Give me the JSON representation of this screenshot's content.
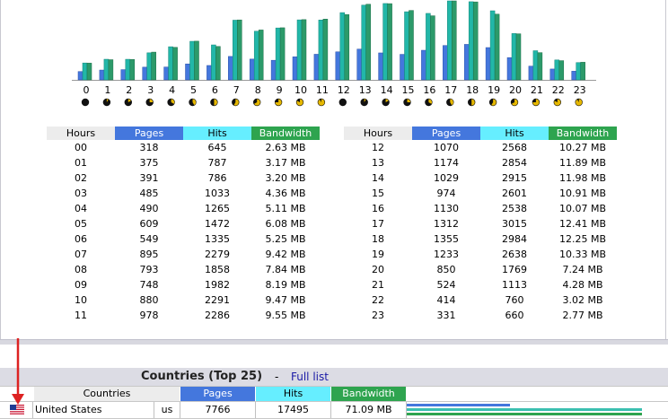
{
  "colors": {
    "pages": "#4477dd",
    "hits": "#66eeff",
    "bandwidth": "#2ea44f",
    "hours_header": "#ececec",
    "arrow": "#dd2222"
  },
  "chart_data": {
    "type": "bar",
    "categories": [
      "0",
      "1",
      "2",
      "3",
      "4",
      "5",
      "6",
      "7",
      "8",
      "9",
      "10",
      "11",
      "12",
      "13",
      "14",
      "15",
      "16",
      "17",
      "18",
      "19",
      "20",
      "21",
      "22",
      "23"
    ],
    "series": [
      {
        "values": [
          318,
          375,
          391,
          485,
          490,
          609,
          549,
          895,
          793,
          748,
          880,
          978,
          1070,
          1174,
          1029,
          974,
          1130,
          1312,
          1355,
          1233,
          850,
          524,
          414,
          331
        ]
      },
      {
        "values": [
          645,
          787,
          786,
          1033,
          1265,
          1472,
          1335,
          2279,
          1858,
          1982,
          2291,
          2286,
          2568,
          2854,
          2915,
          2601,
          2538,
          3015,
          2984,
          2638,
          1769,
          1113,
          760,
          660
        ]
      },
      {
        "values": [
          2.63,
          3.17,
          3.2,
          4.36,
          5.11,
          6.08,
          5.25,
          9.42,
          7.84,
          8.19,
          9.47,
          9.55,
          10.27,
          11.89,
          11.98,
          10.91,
          10.07,
          12.41,
          12.25,
          10.33,
          7.24,
          4.28,
          3.02,
          2.77
        ]
      }
    ]
  },
  "hours_table": {
    "headers": {
      "hours": "Hours",
      "pages": "Pages",
      "hits": "Hits",
      "bandwidth": "Bandwidth"
    },
    "left": [
      [
        "00",
        "318",
        "645",
        "2.63 MB"
      ],
      [
        "01",
        "375",
        "787",
        "3.17 MB"
      ],
      [
        "02",
        "391",
        "786",
        "3.20 MB"
      ],
      [
        "03",
        "485",
        "1033",
        "4.36 MB"
      ],
      [
        "04",
        "490",
        "1265",
        "5.11 MB"
      ],
      [
        "05",
        "609",
        "1472",
        "6.08 MB"
      ],
      [
        "06",
        "549",
        "1335",
        "5.25 MB"
      ],
      [
        "07",
        "895",
        "2279",
        "9.42 MB"
      ],
      [
        "08",
        "793",
        "1858",
        "7.84 MB"
      ],
      [
        "09",
        "748",
        "1982",
        "8.19 MB"
      ],
      [
        "10",
        "880",
        "2291",
        "9.47 MB"
      ],
      [
        "11",
        "978",
        "2286",
        "9.55 MB"
      ]
    ],
    "right": [
      [
        "12",
        "1070",
        "2568",
        "10.27 MB"
      ],
      [
        "13",
        "1174",
        "2854",
        "11.89 MB"
      ],
      [
        "14",
        "1029",
        "2915",
        "11.98 MB"
      ],
      [
        "15",
        "974",
        "2601",
        "10.91 MB"
      ],
      [
        "16",
        "1130",
        "2538",
        "10.07 MB"
      ],
      [
        "17",
        "1312",
        "3015",
        "12.41 MB"
      ],
      [
        "18",
        "1355",
        "2984",
        "12.25 MB"
      ],
      [
        "19",
        "1233",
        "2638",
        "10.33 MB"
      ],
      [
        "20",
        "850",
        "1769",
        "7.24 MB"
      ],
      [
        "21",
        "524",
        "1113",
        "4.28 MB"
      ],
      [
        "22",
        "414",
        "760",
        "3.02 MB"
      ],
      [
        "23",
        "331",
        "660",
        "2.77 MB"
      ]
    ]
  },
  "countries": {
    "title": "Countries (Top 25)",
    "separator": "-",
    "full_list_link": "Full list",
    "headers": {
      "countries": "Countries",
      "pages": "Pages",
      "hits": "Hits",
      "bandwidth": "Bandwidth"
    },
    "rows": [
      {
        "flag_icon": "us-flag-icon",
        "name": "United States",
        "code": "us",
        "pages": "7766",
        "hits": "17495",
        "bandwidth": "71.09 MB",
        "pages_fraction": 0.44,
        "hits_fraction": 1.0,
        "bandwidth_fraction": 1.0
      }
    ]
  }
}
